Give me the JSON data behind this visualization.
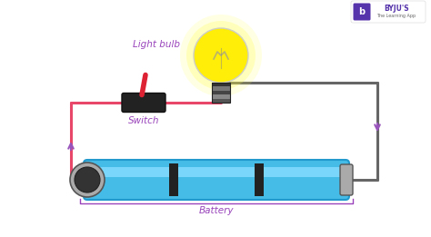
{
  "bg_color": "#ffffff",
  "wire_pink": "#e8476a",
  "wire_dark": "#666666",
  "wire_purple": "#9955bb",
  "battery_blue": "#45bce8",
  "battery_blue_dark": "#2299cc",
  "battery_blue_light": "#88ddff",
  "battery_ring": "#222222",
  "battery_cap_gray": "#888888",
  "switch_body": "#222222",
  "switch_lever": "#dd2233",
  "bulb_glow_outer": "#ffff88",
  "bulb_glow_mid": "#ffee00",
  "bulb_glass_edge": "#999999",
  "bulb_base_dark": "#333333",
  "bulb_base_mid": "#777777",
  "bulb_base_light": "#bbbbbb",
  "label_purple": "#9944bb",
  "byju_purple": "#5533aa",
  "byju_bg": "#ffffff",
  "light_bulb_label": "Light bulb",
  "switch_label": "Switch",
  "battery_label": "Battery",
  "byju_text1": "BYJU'S",
  "byju_text2": "The Learning App"
}
